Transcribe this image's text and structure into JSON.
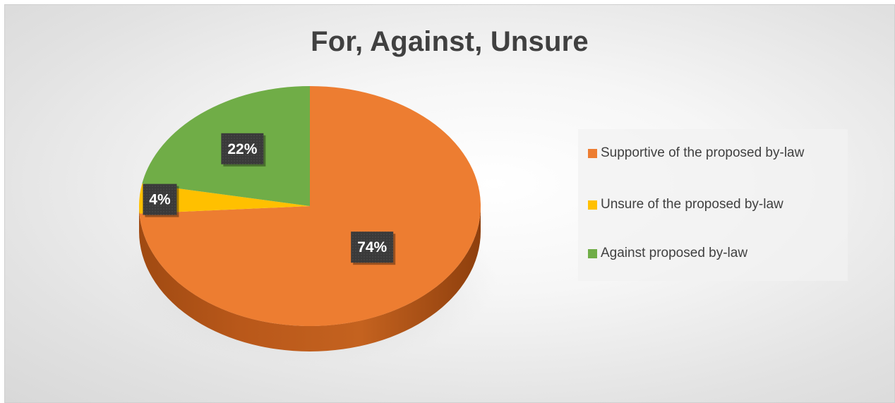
{
  "chart_data": {
    "type": "pie",
    "title": "For, Against, Unsure",
    "categories": [
      "Supportive of the proposed by-law",
      "Unsure of the proposed by-law",
      "Against proposed by-law"
    ],
    "values": [
      74,
      4,
      22
    ],
    "data_labels": [
      "74%",
      "4%",
      "22%"
    ],
    "colors": [
      "#ED7D31",
      "#FFC000",
      "#70AD47"
    ],
    "legend_position": "right",
    "style": "3d"
  }
}
